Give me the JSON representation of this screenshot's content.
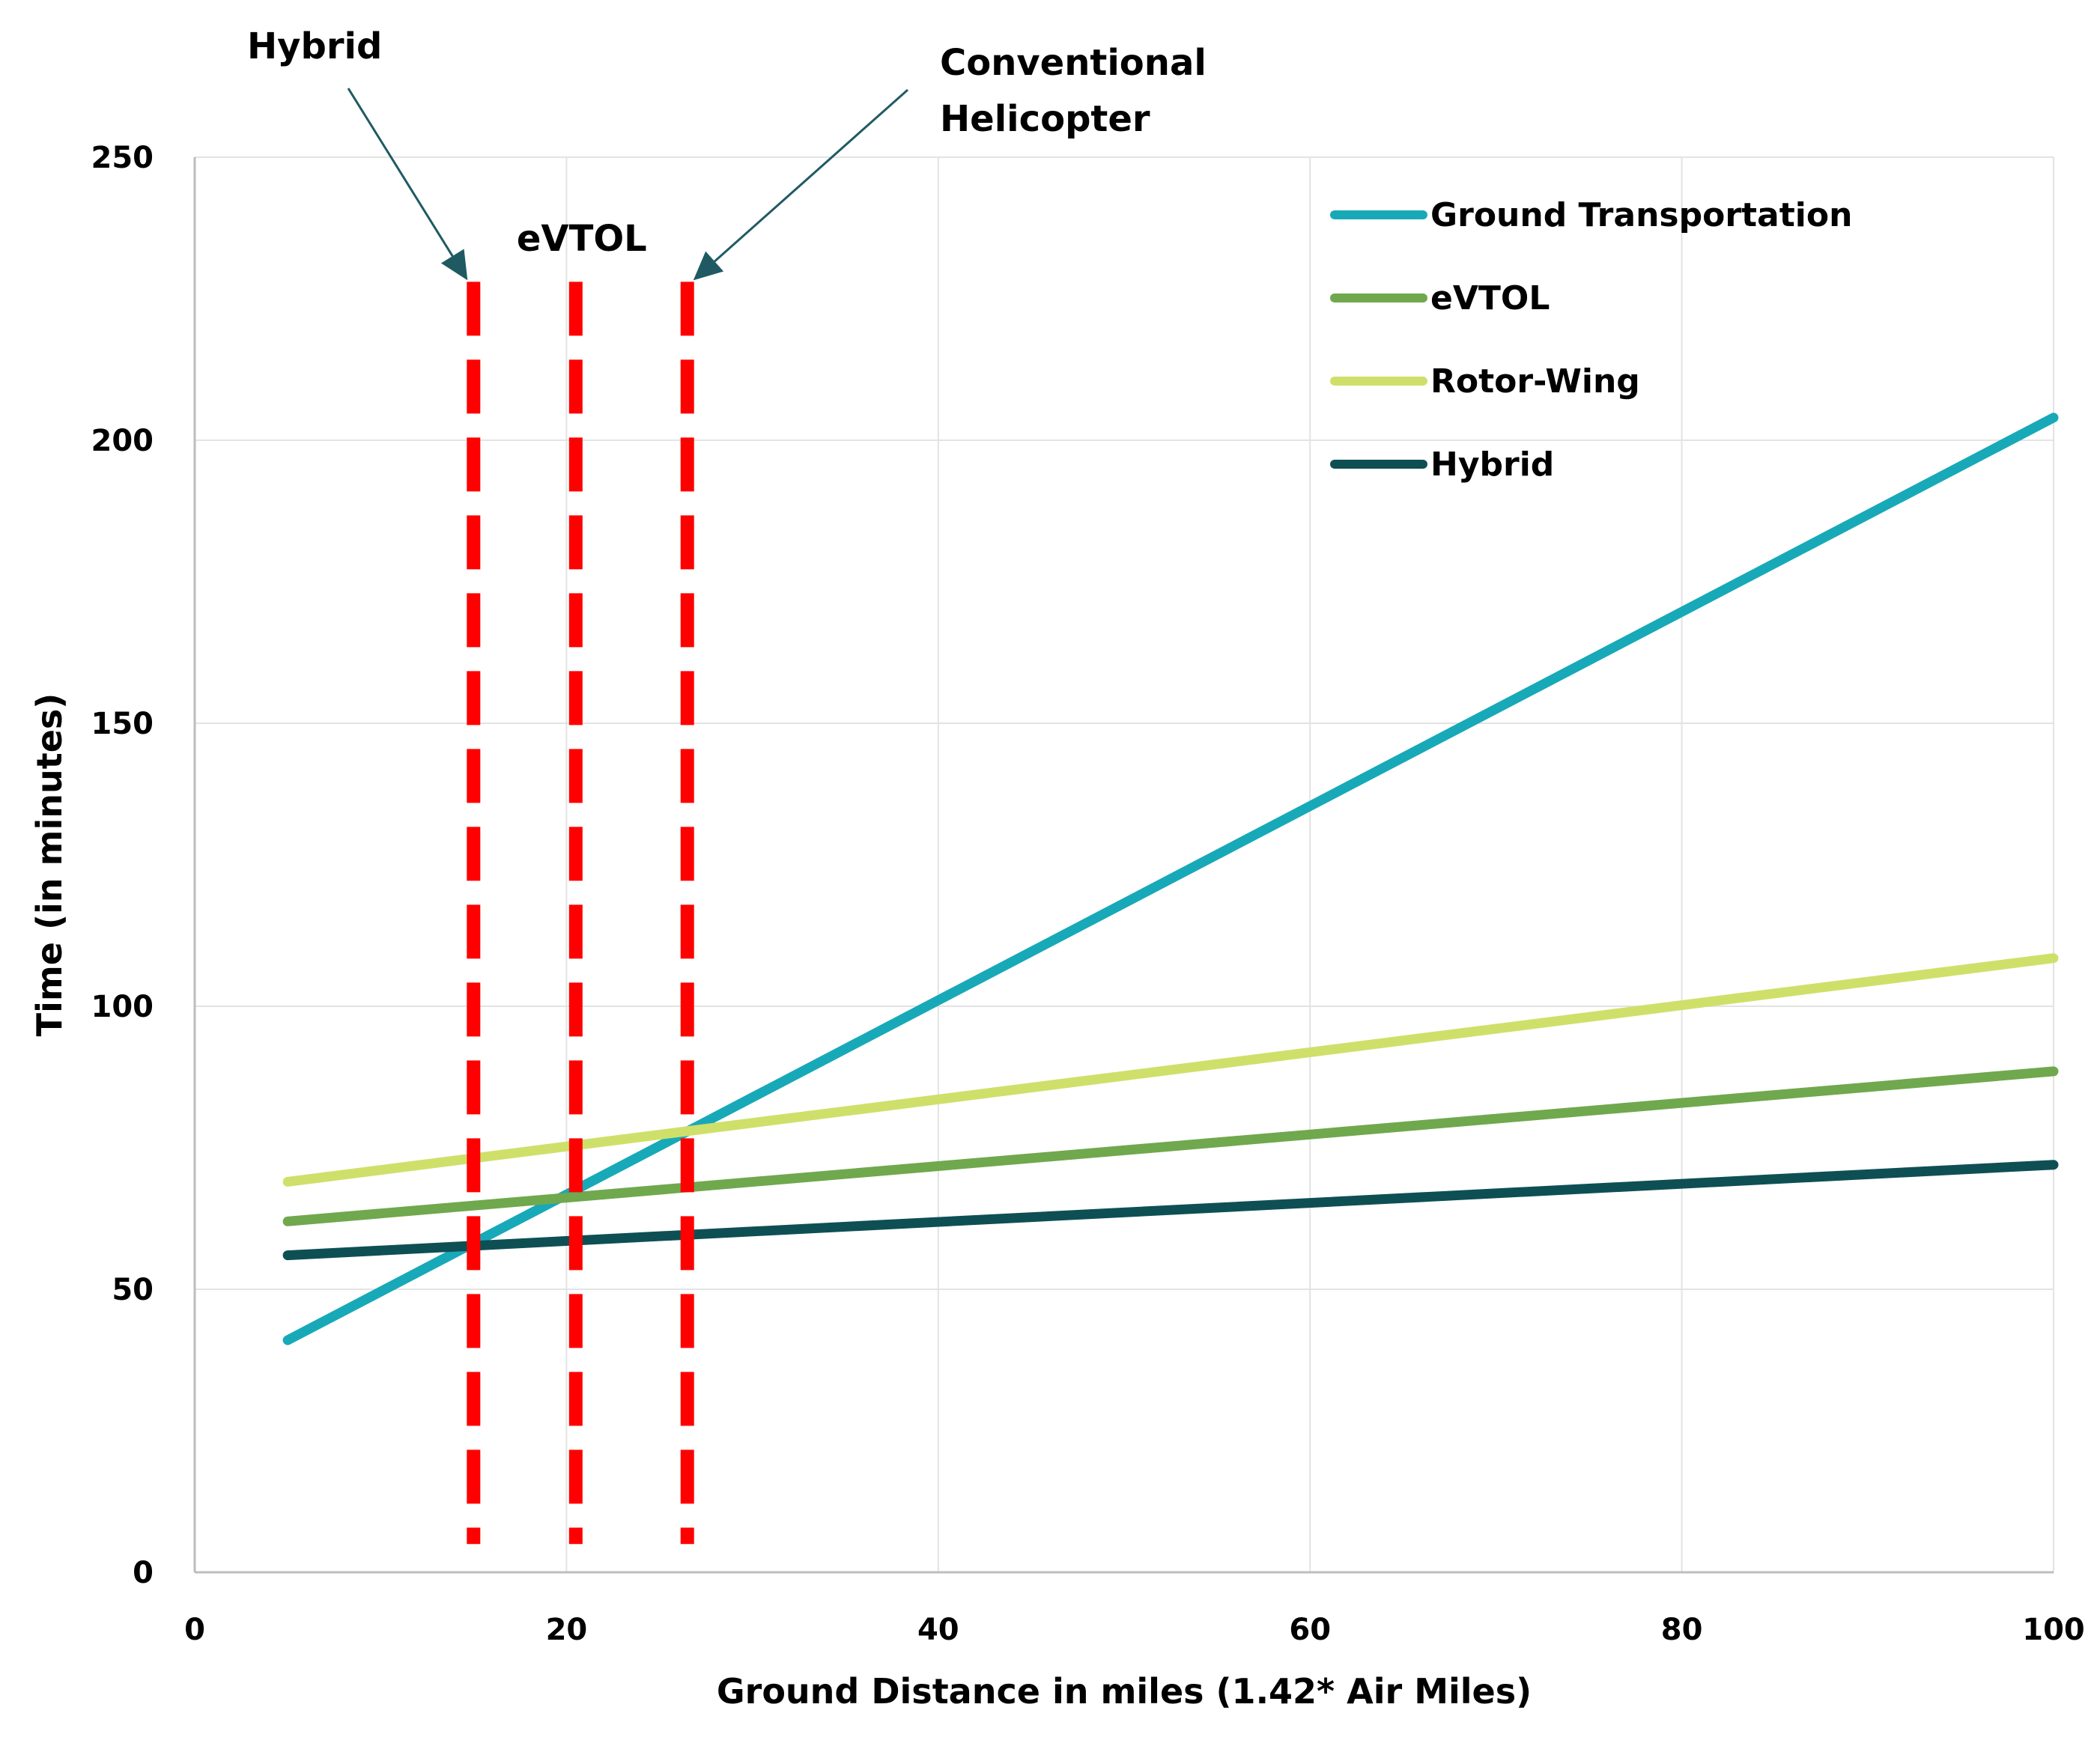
{
  "chart_data": {
    "type": "line",
    "title": "",
    "xlabel": "Ground Distance in miles (1.42* Air Miles)",
    "ylabel": "Time (in minutes)",
    "xlim": [
      0,
      100
    ],
    "ylim": [
      0,
      250
    ],
    "x_ticks": [
      "0",
      "20",
      "40",
      "60",
      "80",
      "100"
    ],
    "y_ticks": [
      "0",
      "50",
      "100",
      "150",
      "200",
      "250"
    ],
    "grid": true,
    "legend_position": "top-right",
    "series": [
      {
        "name": "Ground Transportation",
        "color": "#18A9B8",
        "x": [
          5,
          100
        ],
        "y": [
          41,
          204
        ]
      },
      {
        "name": "eVTOL",
        "color": "#70A84E",
        "x": [
          5,
          100
        ],
        "y": [
          62,
          88.5
        ]
      },
      {
        "name": "Rotor-Wing",
        "color": "#CFE06A",
        "x": [
          5,
          100
        ],
        "y": [
          69,
          108.5
        ]
      },
      {
        "name": "Hybrid",
        "color": "#0E4F54",
        "x": [
          5,
          100
        ],
        "y": [
          56,
          72
        ]
      }
    ],
    "breakeven_lines": [
      {
        "label": "Hybrid",
        "x": 15,
        "y_top": 228,
        "y_bottom": 5,
        "color": "#FF0000"
      },
      {
        "label": "eVTOL",
        "x": 20.5,
        "y_top": 228,
        "y_bottom": 5,
        "color": "#FF0000"
      },
      {
        "label": "Conventional Helicopter",
        "label_lines": [
          "Conventional",
          "Helicopter"
        ],
        "x": 26.5,
        "y_top": 228,
        "y_bottom": 5,
        "color": "#FF0000"
      }
    ],
    "annotation_color": "#1F5A63"
  }
}
